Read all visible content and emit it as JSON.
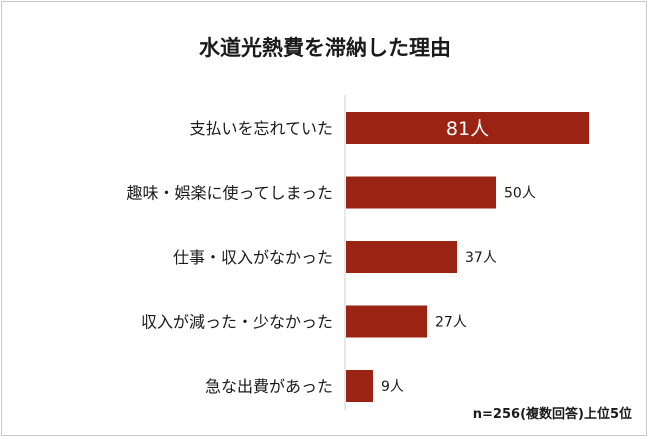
{
  "chart_data": {
    "type": "bar",
    "orientation": "horizontal",
    "title": "水道光熱費を滞納した理由",
    "categories": [
      "支払いを忘れていた",
      "趣味・娯楽に使ってしまった",
      "仕事・収入がなかった",
      "収入が減った・少なかった",
      "急な出費があった"
    ],
    "values": [
      81,
      50,
      37,
      27,
      9
    ],
    "value_labels": [
      "81人",
      "50人",
      "37人",
      "27人",
      "9人"
    ],
    "xlim": [
      0,
      90
    ],
    "grid": false,
    "bar_color": "#9a2313",
    "note": "n=256(複数回答)上位5位"
  }
}
